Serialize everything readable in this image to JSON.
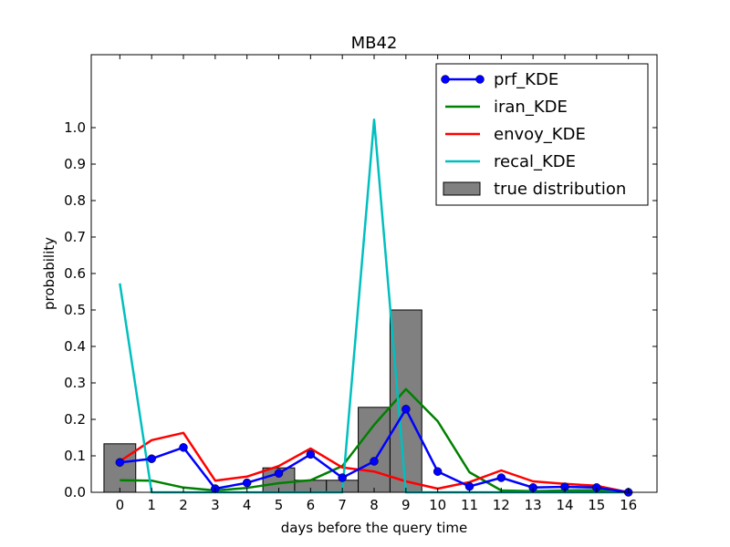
{
  "chart_data": {
    "type": "line",
    "title": "MB42",
    "xlabel": "days before the query time",
    "ylabel": "probability",
    "x": [
      0,
      1,
      2,
      3,
      4,
      5,
      6,
      7,
      8,
      9,
      10,
      11,
      12,
      13,
      14,
      15,
      16
    ],
    "xlim": [
      -0.9,
      16.9
    ],
    "ylim": [
      0,
      1.2
    ],
    "yticks": [
      0.0,
      0.1,
      0.2,
      0.3,
      0.4,
      0.5,
      0.6,
      0.7,
      0.8,
      0.9,
      1.0
    ],
    "ytick_labels": [
      "0.0",
      "0.1",
      "0.2",
      "0.3",
      "0.4",
      "0.5",
      "0.6",
      "0.7",
      "0.8",
      "0.9",
      "1.0"
    ],
    "grid": false,
    "legend_position": "top-right",
    "series": [
      {
        "name": "prf_KDE",
        "color": "#0000ff",
        "marker": "circle",
        "values": [
          0.082,
          0.092,
          0.123,
          0.01,
          0.026,
          0.052,
          0.104,
          0.04,
          0.085,
          0.228,
          0.057,
          0.016,
          0.04,
          0.013,
          0.015,
          0.013,
          0.0
        ]
      },
      {
        "name": "iran_KDE",
        "color": "#008000",
        "values": [
          0.033,
          0.032,
          0.013,
          0.005,
          0.012,
          0.025,
          0.033,
          0.072,
          0.185,
          0.283,
          0.195,
          0.055,
          0.005,
          0.003,
          0.005,
          0.006,
          0.0
        ]
      },
      {
        "name": "envoy_KDE",
        "color": "#ff0000",
        "values": [
          0.085,
          0.143,
          0.163,
          0.032,
          0.043,
          0.072,
          0.12,
          0.068,
          0.057,
          0.03,
          0.01,
          0.028,
          0.06,
          0.03,
          0.023,
          0.018,
          0.0
        ]
      },
      {
        "name": "recal_KDE",
        "color": "#00bfbf",
        "values": [
          0.573,
          0.0,
          0.0,
          0.0,
          0.0,
          0.0,
          0.0,
          0.0,
          1.022,
          0.0,
          0.0,
          0.0,
          0.0,
          0.0,
          0.0,
          0.0,
          0.0
        ]
      }
    ],
    "bars": {
      "name": "true distribution",
      "color": "#808080",
      "items": [
        {
          "x": 0,
          "value": 0.133
        },
        {
          "x": 5,
          "value": 0.067
        },
        {
          "x": 6,
          "value": 0.033
        },
        {
          "x": 7,
          "value": 0.033
        },
        {
          "x": 8,
          "value": 0.233
        },
        {
          "x": 9,
          "value": 0.5
        }
      ]
    }
  }
}
